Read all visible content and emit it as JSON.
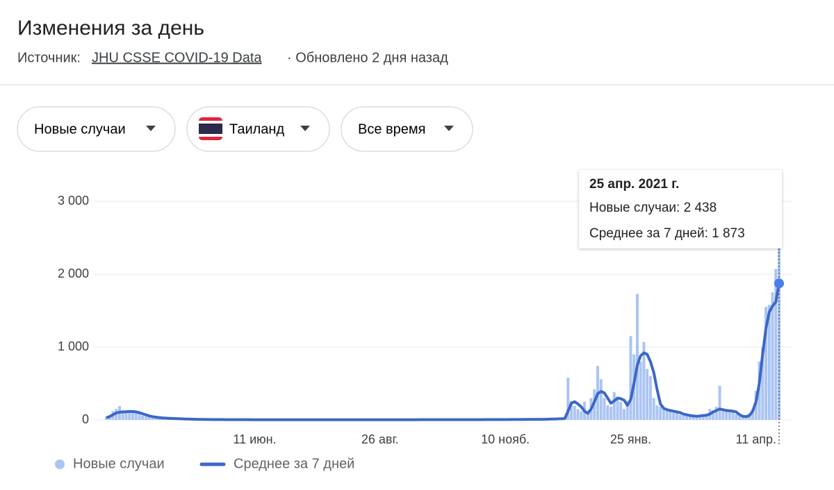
{
  "header": {
    "title": "Изменения за день",
    "source_label": "Источник:",
    "source_link": "JHU CSSE COVID-19 Data",
    "updated": "· Обновлено 2 дня назад"
  },
  "filters": [
    "Новые случаи",
    "Таиланд",
    "Все время"
  ],
  "chart_data": {
    "type": "bar-line",
    "categories": [
      null,
      null,
      null,
      null,
      null,
      null,
      null,
      null,
      null,
      null,
      null,
      null,
      null,
      null,
      null,
      null,
      null,
      null,
      null,
      null,
      null,
      null,
      null,
      null,
      null,
      null,
      null,
      null,
      null,
      null,
      null,
      null,
      null,
      null,
      null,
      null,
      null,
      null,
      null,
      null,
      null,
      null,
      null,
      null,
      null,
      "11 июн.",
      null,
      null,
      null,
      null,
      null,
      null,
      null,
      null,
      null,
      null,
      null,
      null,
      null,
      null,
      null,
      null,
      null,
      null,
      null,
      null,
      null,
      null,
      null,
      null,
      null,
      null,
      null,
      null,
      null,
      null,
      null,
      null,
      null,
      null,
      null,
      null,
      null,
      "26 авг.",
      null,
      null,
      null,
      null,
      null,
      null,
      null,
      null,
      null,
      null,
      null,
      null,
      null,
      null,
      null,
      null,
      null,
      null,
      null,
      null,
      null,
      null,
      null,
      null,
      null,
      null,
      null,
      null,
      null,
      null,
      null,
      null,
      null,
      null,
      null,
      null,
      null,
      "10 нояб.",
      null,
      null,
      null,
      null,
      null,
      null,
      null,
      null,
      null,
      null,
      null,
      null,
      null,
      null,
      null,
      null,
      null,
      null,
      null,
      null,
      null,
      null,
      null,
      null,
      null,
      null,
      null,
      null,
      null,
      null,
      null,
      null,
      null,
      null,
      null,
      null,
      null,
      "25 янв.",
      null,
      null,
      null,
      null,
      null,
      null,
      null,
      null,
      null,
      null,
      null,
      null,
      null,
      null,
      null,
      null,
      null,
      null,
      null,
      null,
      null,
      null,
      null,
      null,
      null,
      null,
      null,
      null,
      null,
      null,
      null,
      null,
      null,
      null,
      null,
      null,
      null,
      "11 апр.",
      null,
      null,
      null,
      null,
      null,
      null,
      null
    ],
    "series": [
      {
        "name": "Новые случаи",
        "kind": "bar",
        "color": "#aac4f3",
        "values": [
          40,
          60,
          120,
          150,
          190,
          130,
          110,
          130,
          120,
          110,
          100,
          60,
          50,
          50,
          40,
          30,
          30,
          25,
          20,
          20,
          18,
          15,
          15,
          12,
          10,
          10,
          8,
          8,
          7,
          6,
          5,
          8,
          4,
          6,
          5,
          3,
          6,
          4,
          5,
          3,
          4,
          3,
          5,
          2,
          4,
          3,
          2,
          4,
          3,
          2,
          3,
          2,
          4,
          3,
          2,
          3,
          4,
          2,
          3,
          3,
          2,
          4,
          3,
          3,
          2,
          5,
          3,
          2,
          3,
          4,
          3,
          2,
          4,
          3,
          3,
          2,
          4,
          3,
          2,
          3,
          3,
          4,
          2,
          3,
          3,
          4,
          2,
          3,
          5,
          3,
          2,
          4,
          3,
          5,
          3,
          4,
          6,
          3,
          5,
          4,
          4,
          5,
          3,
          6,
          4,
          5,
          3,
          4,
          6,
          4,
          5,
          4,
          3,
          6,
          4,
          5,
          7,
          4,
          6,
          5,
          5,
          6,
          4,
          7,
          5,
          6,
          8,
          5,
          7,
          6,
          8,
          7,
          9,
          10,
          8,
          12,
          11,
          15,
          18,
          20,
          580,
          260,
          190,
          150,
          120,
          250,
          100,
          300,
          420,
          740,
          560,
          300,
          200,
          180,
          380,
          300,
          250,
          150,
          260,
          1150,
          900,
          1730,
          800,
          1070,
          700,
          600,
          300,
          200,
          180,
          160,
          150,
          120,
          100,
          90,
          70,
          60,
          80,
          50,
          60,
          40,
          60,
          80,
          70,
          150,
          130,
          180,
          470,
          120,
          140,
          120,
          100,
          80,
          50,
          40,
          60,
          90,
          150,
          400,
          800,
          1000,
          1550,
          1580,
          1750,
          2070,
          2438
        ]
      },
      {
        "name": "Среднее за 7 дней",
        "kind": "line",
        "color": "#3b67c7",
        "values": [
          30,
          45,
          70,
          95,
          105,
          110,
          112,
          115,
          115,
          110,
          100,
          85,
          70,
          55,
          45,
          38,
          32,
          28,
          25,
          22,
          20,
          18,
          16,
          14,
          12,
          11,
          10,
          9,
          8,
          7,
          6,
          6,
          5,
          5,
          5,
          5,
          4,
          4,
          4,
          4,
          4,
          4,
          4,
          4,
          3,
          3,
          3,
          3,
          3,
          3,
          3,
          3,
          3,
          3,
          3,
          3,
          3,
          3,
          3,
          3,
          3,
          3,
          3,
          3,
          3,
          3,
          3,
          3,
          3,
          3,
          3,
          3,
          3,
          3,
          3,
          3,
          3,
          3,
          3,
          3,
          3,
          3,
          3,
          3,
          3,
          3,
          3,
          3,
          3,
          3,
          3,
          3,
          3,
          3,
          3,
          4,
          4,
          4,
          4,
          4,
          4,
          4,
          4,
          4,
          4,
          4,
          4,
          4,
          4,
          4,
          4,
          4,
          4,
          4,
          4,
          5,
          5,
          5,
          5,
          5,
          5,
          5,
          5,
          6,
          6,
          6,
          6,
          6,
          7,
          7,
          7,
          8,
          8,
          9,
          10,
          11,
          12,
          14,
          16,
          18,
          120,
          230,
          250,
          220,
          180,
          120,
          90,
          150,
          250,
          360,
          390,
          370,
          300,
          230,
          260,
          300,
          290,
          270,
          200,
          280,
          500,
          750,
          880,
          920,
          900,
          800,
          650,
          420,
          220,
          160,
          140,
          130,
          120,
          110,
          100,
          80,
          70,
          60,
          55,
          50,
          55,
          60,
          65,
          80,
          110,
          130,
          150,
          140,
          130,
          125,
          120,
          110,
          70,
          50,
          45,
          60,
          120,
          250,
          500,
          900,
          1250,
          1480,
          1560,
          1620,
          1873
        ]
      }
    ],
    "ylim": [
      0,
      3000
    ],
    "yticks": [
      0,
      {
        "value": 1000,
        "label": "1 000"
      },
      {
        "value": 2000,
        "label": "2 000"
      },
      {
        "value": 3000,
        "label": "3 000"
      }
    ],
    "grid": true,
    "legend": "bottom-left",
    "tooltip": {
      "date": "25 апр. 2021 г.",
      "lines": [
        "Новые случаи: 2 438",
        "Среднее за 7 дней: 1 873"
      ]
    }
  }
}
